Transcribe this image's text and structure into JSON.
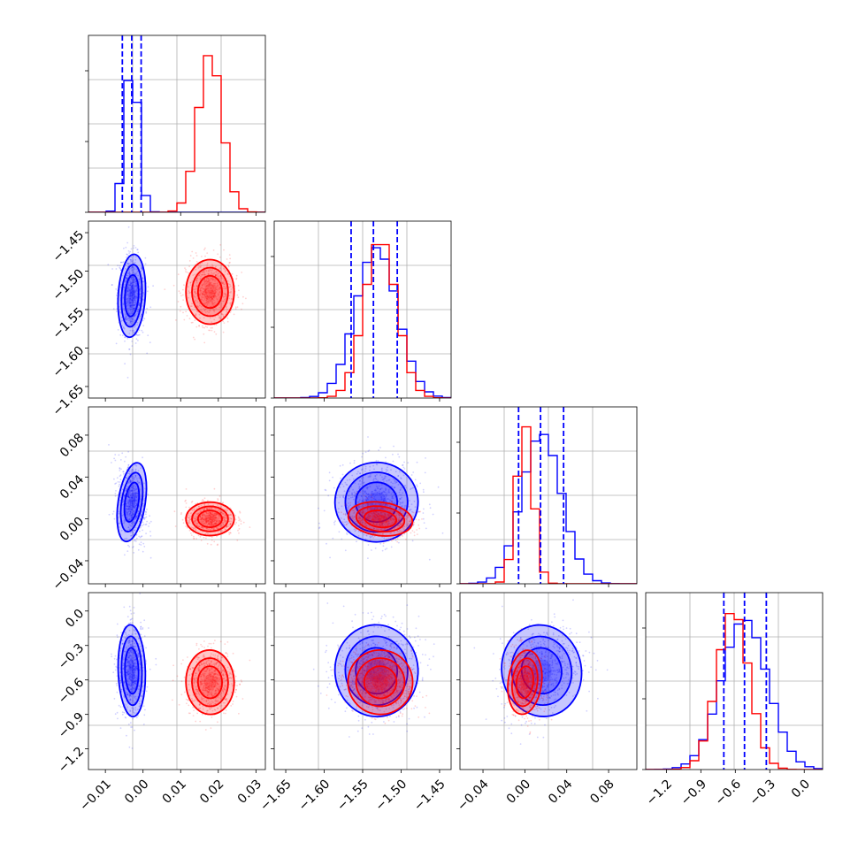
{
  "chart_data": {
    "type": "corner",
    "n_params": 4,
    "colors": {
      "blue": "#0000ff",
      "red": "#ff0000"
    },
    "grid": true,
    "axes": [
      {
        "range": [
          -0.0145,
          0.0325
        ],
        "ticks": [
          -0.01,
          0.0,
          0.01,
          0.02,
          0.03
        ],
        "tick_labels": [
          "−0.01",
          "0.00",
          "0.01",
          "0.02",
          "0.03"
        ]
      },
      {
        "range": [
          -1.665,
          -1.435
        ],
        "ticks": [
          -1.65,
          -1.6,
          -1.55,
          -1.5,
          -1.45
        ],
        "tick_labels": [
          "−1.65",
          "−1.60",
          "−1.55",
          "−1.50",
          "−1.45"
        ]
      },
      {
        "range": [
          -0.062,
          0.107
        ],
        "ticks": [
          -0.04,
          0.0,
          0.04,
          0.08
        ],
        "tick_labels": [
          "−0.04",
          "0.00",
          "0.04",
          "0.08"
        ]
      },
      {
        "range": [
          -1.38,
          0.16
        ],
        "ticks": [
          -1.2,
          -0.9,
          -0.6,
          -0.3,
          0.0
        ],
        "tick_labels": [
          "−1.2",
          "−0.9",
          "−0.6",
          "−0.3",
          "0.0"
        ]
      }
    ],
    "series": [
      {
        "color": "#0000ff",
        "mean": [
          -0.003,
          -1.532,
          0.016,
          -0.52
        ],
        "std": [
          0.0018,
          0.027,
          0.019,
          0.2
        ],
        "quantiles": [
          [
            -0.0055,
            -0.003,
            -0.0005
          ],
          [
            -1.565,
            -1.536,
            -1.505
          ],
          [
            -0.006,
            0.015,
            0.037
          ],
          [
            -0.7,
            -0.52,
            -0.33
          ]
        ]
      },
      {
        "color": "#ff0000",
        "mean": [
          0.0178,
          -1.527,
          0.0,
          -0.62
        ],
        "std": [
          0.0032,
          0.021,
          0.008,
          0.14
        ]
      }
    ],
    "blue_corr": {
      "1_0": -0.1,
      "2_0": -0.25,
      "2_1": 0.05,
      "3_0": 0.05,
      "3_1": 0.1,
      "3_2": 0.3
    },
    "red_corr": {
      "1_0": 0.0,
      "2_0": 0.0,
      "2_1": -0.2,
      "3_0": 0.05,
      "3_1": -0.2,
      "3_2": -0.2
    }
  }
}
